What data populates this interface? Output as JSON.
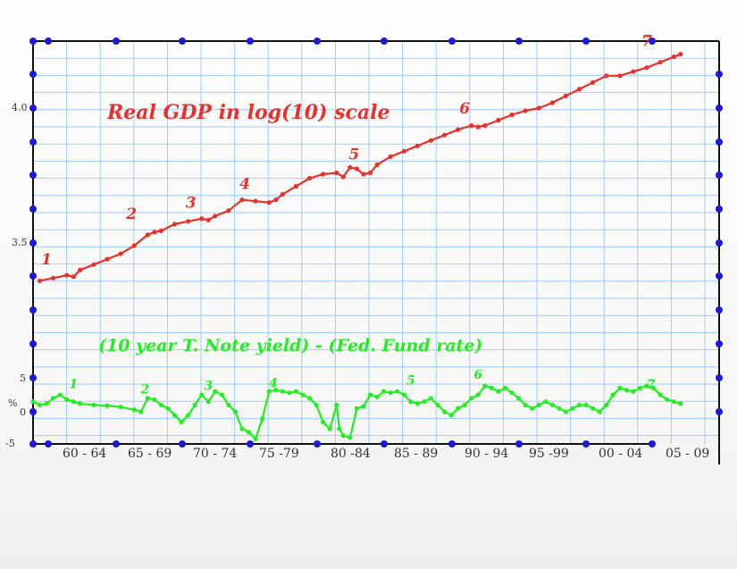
{
  "chart_data": {
    "type": "line",
    "colors": {
      "gdp": "#e8312b",
      "spread": "#22ee22",
      "grid": "#9ecbff",
      "frame": "#111111",
      "axis_dot": "#1a1ad8"
    },
    "gdp_panel": {
      "title": "Real GDP in log(10) scale",
      "y_tick_labels": [
        "4.0",
        "3.5"
      ],
      "ylim": [
        3.35,
        4.26
      ],
      "scale": "log10",
      "series": {
        "x": [
          1958.0,
          1959.0,
          1960.0,
          1960.5,
          1961.0,
          1962.0,
          1963.0,
          1964.0,
          1965.0,
          1966.0,
          1966.5,
          1967.0,
          1968.0,
          1969.0,
          1970.0,
          1970.5,
          1971.0,
          1972.0,
          1973.0,
          1974.0,
          1975.0,
          1975.5,
          1976.0,
          1977.0,
          1978.0,
          1979.0,
          1980.0,
          1980.5,
          1981.0,
          1981.5,
          1982.0,
          1982.5,
          1983.0,
          1984.0,
          1985.0,
          1986.0,
          1987.0,
          1988.0,
          1989.0,
          1990.0,
          1990.5,
          1991.0,
          1992.0,
          1993.0,
          1994.0,
          1995.0,
          1996.0,
          1997.0,
          1998.0,
          1999.0,
          2000.0,
          2001.0,
          2002.0,
          2003.0,
          2004.0,
          2005.0,
          2005.5
        ],
        "values": [
          3.36,
          3.37,
          3.38,
          3.375,
          3.4,
          3.42,
          3.44,
          3.46,
          3.49,
          3.53,
          3.54,
          3.545,
          3.57,
          3.58,
          3.59,
          3.585,
          3.6,
          3.62,
          3.66,
          3.655,
          3.65,
          3.66,
          3.68,
          3.71,
          3.74,
          3.755,
          3.76,
          3.745,
          3.78,
          3.775,
          3.755,
          3.76,
          3.79,
          3.82,
          3.84,
          3.86,
          3.88,
          3.9,
          3.92,
          3.935,
          3.93,
          3.935,
          3.955,
          3.975,
          3.99,
          4.0,
          4.02,
          4.045,
          4.07,
          4.095,
          4.12,
          4.12,
          4.135,
          4.15,
          4.17,
          4.19,
          4.2
        ]
      },
      "markers": [
        {
          "label": "1",
          "x": 1958.5,
          "y": 3.42
        },
        {
          "label": "2",
          "x": 1964.8,
          "y": 3.59
        },
        {
          "label": "3",
          "x": 1969.2,
          "y": 3.63
        },
        {
          "label": "4",
          "x": 1973.2,
          "y": 3.7
        },
        {
          "label": "5",
          "x": 1981.3,
          "y": 3.81
        },
        {
          "label": "6",
          "x": 1989.5,
          "y": 3.98
        },
        {
          "label": "7",
          "x": 2003.0,
          "y": 4.23
        }
      ]
    },
    "spread_panel": {
      "title": "(10 year T. Note yield) - (Fed. Fund rate)",
      "y_unit": "%",
      "y_tick_labels": [
        "5",
        "0",
        "-5"
      ],
      "ylim": [
        -5,
        5
      ],
      "series": {
        "x": [
          1957.5,
          1958.0,
          1958.5,
          1959.0,
          1959.5,
          1960.0,
          1960.5,
          1961.0,
          1962.0,
          1963.0,
          1964.0,
          1965.0,
          1965.5,
          1966.0,
          1966.5,
          1967.0,
          1967.5,
          1968.0,
          1968.5,
          1969.0,
          1969.5,
          1970.0,
          1970.5,
          1971.0,
          1971.5,
          1972.0,
          1972.5,
          1973.0,
          1973.5,
          1974.0,
          1974.5,
          1975.0,
          1975.5,
          1976.0,
          1976.5,
          1977.0,
          1977.5,
          1978.0,
          1978.5,
          1979.0,
          1979.5,
          1980.0,
          1980.2,
          1980.5,
          1981.0,
          1981.5,
          1982.0,
          1982.5,
          1983.0,
          1983.5,
          1984.0,
          1984.5,
          1985.0,
          1985.5,
          1986.0,
          1986.5,
          1987.0,
          1987.5,
          1988.0,
          1988.5,
          1989.0,
          1989.5,
          1990.0,
          1990.5,
          1991.0,
          1991.5,
          1992.0,
          1992.5,
          1993.0,
          1993.5,
          1994.0,
          1994.5,
          1995.0,
          1995.5,
          1996.0,
          1996.5,
          1997.0,
          1997.5,
          1998.0,
          1998.5,
          1999.0,
          1999.5,
          2000.0,
          2000.5,
          2001.0,
          2001.5,
          2002.0,
          2002.5,
          2003.0,
          2003.5,
          2004.0,
          2004.5,
          2005.0,
          2005.5
        ],
        "values": [
          1.5,
          1.0,
          1.2,
          2.0,
          2.5,
          1.8,
          1.5,
          1.2,
          1.0,
          0.9,
          0.7,
          0.3,
          0.0,
          2.0,
          1.8,
          1.0,
          0.5,
          -0.5,
          -1.5,
          -0.5,
          1.0,
          2.5,
          1.5,
          3.0,
          2.5,
          1.0,
          0.0,
          -2.5,
          -3.0,
          -4.0,
          -1.0,
          3.0,
          3.2,
          3.0,
          2.8,
          3.0,
          2.5,
          2.0,
          1.0,
          -1.5,
          -2.5,
          1.0,
          -2.5,
          -3.5,
          -3.8,
          0.5,
          0.8,
          2.5,
          2.2,
          3.0,
          2.8,
          3.0,
          2.5,
          1.5,
          1.2,
          1.5,
          2.0,
          1.0,
          0.0,
          -0.5,
          0.5,
          1.0,
          2.0,
          2.5,
          3.8,
          3.5,
          3.0,
          3.5,
          2.8,
          2.0,
          1.0,
          0.5,
          1.0,
          1.5,
          1.0,
          0.5,
          0.0,
          0.5,
          1.0,
          1.0,
          0.5,
          0.0,
          1.0,
          2.5,
          3.5,
          3.2,
          3.0,
          3.5,
          3.8,
          3.5,
          2.5,
          1.8,
          1.5,
          1.2
        ]
      },
      "markers": [
        {
          "label": "1",
          "x": 1960.5,
          "y": 3.5
        },
        {
          "label": "2",
          "x": 1965.8,
          "y": 2.7
        },
        {
          "label": "3",
          "x": 1970.5,
          "y": 3.2
        },
        {
          "label": "4",
          "x": 1975.3,
          "y": 3.6
        },
        {
          "label": "5",
          "x": 1985.5,
          "y": 4.0
        },
        {
          "label": "6",
          "x": 1990.5,
          "y": 4.9
        },
        {
          "label": "7",
          "x": 2003.3,
          "y": 3.4
        }
      ]
    },
    "x_tick_labels": [
      "60 - 64",
      "65 - 69",
      "70 - 74",
      "75 -79",
      "80 -84",
      "85 - 89",
      "90 - 94",
      "95 -99",
      "00 - 04",
      "05 - 09"
    ],
    "xlim": [
      1957.5,
      2009.5
    ],
    "grid": true
  }
}
